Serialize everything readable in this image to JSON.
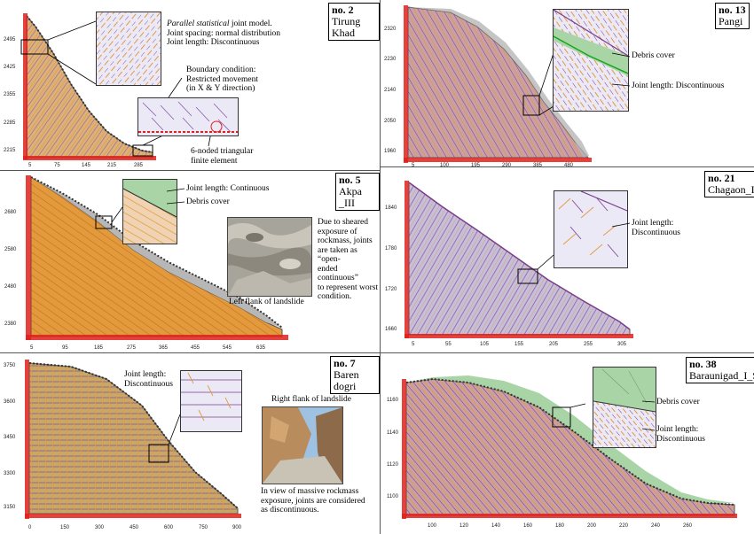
{
  "colors": {
    "rock_orange": "#e39a3c",
    "rock_pink": "#c9a0a8",
    "rock_lavender": "#c6bfdc",
    "rock_tan": "#c8a86a",
    "debris_green": "#a9d5a6",
    "boundary_red": "#e0201b",
    "mesh_purple": "#7a3e8c"
  },
  "panels": [
    {
      "id": "p2",
      "number": "no. 2",
      "site": "Tirung Khad",
      "y_ticks": [
        "2495",
        "2425",
        "2355",
        "2285",
        "2215"
      ],
      "x_ticks": [
        "5",
        "75",
        "145",
        "215",
        "285"
      ],
      "notes": [
        {
          "italic": "Parallel statistical",
          "rest": " joint model."
        },
        {
          "italic": "",
          "rest": "Joint spacing: normal distribution"
        },
        {
          "italic": "",
          "rest": "Joint length: Discontinuous"
        }
      ],
      "boundary_note": [
        "Boundary condition:",
        "Restricted movement",
        "(in X & Y direction)"
      ],
      "element_note": [
        "6-noded triangular",
        "finite element"
      ]
    },
    {
      "id": "p13",
      "number": "no. 13",
      "site": "Pangi",
      "y_ticks": [
        "2320",
        "2230",
        "2140",
        "2050",
        "1960"
      ],
      "x_ticks": [
        "5",
        "100",
        "195",
        "290",
        "385",
        "480"
      ],
      "labels": [
        "Debris cover",
        "Joint length: Discontinuous"
      ]
    },
    {
      "id": "p5",
      "number": "no. 5",
      "site": "Akpa _III",
      "y_ticks": [
        "2680",
        "2580",
        "2480",
        "2380"
      ],
      "x_ticks": [
        "5",
        "95",
        "185",
        "275",
        "365",
        "455",
        "545",
        "635"
      ],
      "labels": [
        "Joint length: Continuous",
        "Debris cover"
      ],
      "photo_caption": "Left flank of landslide",
      "side_note": [
        "Due to sheared",
        "exposure of",
        "rockmass, joints",
        "are taken as “open-",
        "ended continuous”",
        "to represent worst",
        "condition."
      ]
    },
    {
      "id": "p21",
      "number": "no. 21",
      "site": "Chagaon_I",
      "y_ticks": [
        "1840",
        "1780",
        "1720",
        "1660"
      ],
      "x_ticks": [
        "5",
        "55",
        "105",
        "155",
        "205",
        "255",
        "305"
      ],
      "labels": [
        "Joint length:",
        "Discontinuous"
      ]
    },
    {
      "id": "p7",
      "number": "no. 7",
      "site": "Baren dogri",
      "y_ticks": [
        "3750",
        "3600",
        "3450",
        "3300",
        "3150"
      ],
      "x_ticks": [
        "0",
        "150",
        "300",
        "450",
        "600",
        "750",
        "900"
      ],
      "labels": [
        "Joint length:",
        "Discontinuous"
      ],
      "photo_caption": "Right flank of landslide",
      "side_note": [
        "In view of massive rockmass",
        "exposure, joints are considered",
        "as discontinuous."
      ]
    },
    {
      "id": "p38",
      "number": "no. 38",
      "site": "Baraunigad_I_S",
      "y_ticks": [
        "1160",
        "1140",
        "1120",
        "1100"
      ],
      "x_ticks": [
        "100",
        "120",
        "140",
        "160",
        "180",
        "200",
        "220",
        "240",
        "260"
      ],
      "labels": [
        "Debris cover",
        "Joint length:",
        "Discontinuous"
      ]
    }
  ]
}
